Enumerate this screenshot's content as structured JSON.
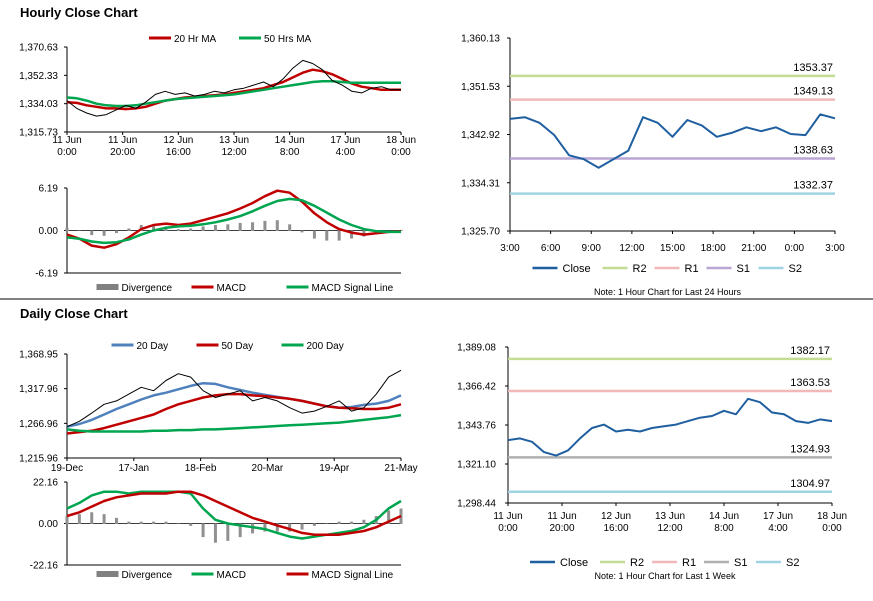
{
  "sections": {
    "hourly_title": "Hourly Close Chart",
    "daily_title": "Daily Close Chart"
  },
  "chart_data": [
    {
      "id": "hourly-price",
      "type": "line",
      "legend": [
        "20 Hr MA",
        "50 Hrs MA"
      ],
      "legend_colors": [
        "#c00000",
        "#00a550"
      ],
      "ylim": [
        1315.73,
        1370.63
      ],
      "yticks": [
        "1,370.63",
        "1,352.33",
        "1,334.03",
        "1,315.73"
      ],
      "xticks": [
        "11 Jun\n0:00",
        "11 Jun\n20:00",
        "12 Jun\n16:00",
        "13 Jun\n12:00",
        "14 Jun\n8:00",
        "17 Jun\n4:00",
        "18 Jun\n0:00"
      ],
      "series": [
        {
          "name": "20 Hr MA",
          "color": "#c00000",
          "values": [
            1335,
            1334.5,
            1333,
            1332,
            1331,
            1331,
            1330.5,
            1331,
            1332,
            1334,
            1336,
            1337,
            1338,
            1338.5,
            1339,
            1339.5,
            1340,
            1341,
            1342,
            1343,
            1344,
            1346,
            1348,
            1351,
            1354,
            1356,
            1355,
            1353,
            1350,
            1347,
            1345,
            1344,
            1343,
            1343,
            1343
          ]
        },
        {
          "name": "50 Hrs MA",
          "color": "#00a550",
          "values": [
            1338,
            1337.5,
            1336,
            1334,
            1333,
            1332.5,
            1332.5,
            1333,
            1334,
            1335,
            1336,
            1337,
            1337.5,
            1338,
            1338.5,
            1339,
            1339.5,
            1340,
            1341,
            1342,
            1343,
            1344,
            1345,
            1346,
            1347,
            1348,
            1348.5,
            1348.5,
            1348,
            1347.5,
            1347.5,
            1347.5,
            1347.5,
            1347.5,
            1347.5
          ]
        },
        {
          "name": "Price",
          "color": "#000000",
          "values": [
            1336,
            1331,
            1328,
            1326,
            1327,
            1330,
            1333,
            1331,
            1335,
            1340,
            1342,
            1340,
            1341,
            1339,
            1340,
            1342,
            1341,
            1343,
            1344,
            1346,
            1348,
            1345,
            1350,
            1357,
            1362,
            1360,
            1356,
            1349,
            1346,
            1342,
            1341,
            1344,
            1345,
            1343,
            1343
          ]
        }
      ]
    },
    {
      "id": "hourly-macd",
      "type": "bar",
      "legend": [
        "Divergence",
        "MACD",
        "MACD Signal Line"
      ],
      "legend_colors": [
        "#808080",
        "#c00000",
        "#00a550"
      ],
      "ylim": [
        -6.19,
        6.19
      ],
      "yticks": [
        "6.19",
        "0.00",
        "-6.19"
      ],
      "series": [
        {
          "name": "MACD",
          "color": "#c00000",
          "values": [
            -0.6,
            -1.2,
            -2.2,
            -2.5,
            -2.0,
            -1.0,
            0.2,
            0.8,
            1.0,
            0.8,
            1.0,
            1.5,
            2.0,
            2.5,
            3.2,
            4.0,
            5.0,
            5.8,
            5.5,
            4.2,
            2.5,
            1.2,
            0.2,
            -0.3,
            -0.6,
            -0.4,
            -0.2,
            -0.1
          ]
        },
        {
          "name": "MACD Signal Line",
          "color": "#00a550",
          "values": [
            -1.0,
            -1.2,
            -1.6,
            -1.8,
            -1.7,
            -1.3,
            -0.6,
            0.0,
            0.4,
            0.6,
            0.7,
            0.9,
            1.2,
            1.6,
            2.1,
            2.8,
            3.6,
            4.3,
            4.6,
            4.4,
            3.6,
            2.6,
            1.6,
            0.8,
            0.2,
            -0.1,
            -0.2,
            -0.2
          ]
        },
        {
          "name": "Divergence",
          "color": "#808080",
          "values": [
            0.4,
            0.0,
            -0.6,
            -0.7,
            -0.3,
            0.3,
            0.8,
            0.8,
            0.6,
            0.2,
            0.3,
            0.6,
            0.8,
            0.9,
            1.1,
            1.2,
            1.4,
            1.5,
            0.9,
            -0.2,
            -1.1,
            -1.4,
            -1.4,
            -1.1,
            -0.8,
            -0.3,
            0.0,
            0.1
          ]
        }
      ]
    },
    {
      "id": "hourly-pivot",
      "type": "line",
      "ylim": [
        1325.7,
        1360.13
      ],
      "yticks": [
        "1,360.13",
        "1,351.53",
        "1,342.92",
        "1,334.31",
        "1,325.70"
      ],
      "xticks": [
        "3:00",
        "6:00",
        "9:00",
        "12:00",
        "15:00",
        "18:00",
        "21:00",
        "0:00",
        "3:00"
      ],
      "series": [
        {
          "name": "Close",
          "color": "#1f5fa0",
          "values": [
            1345.7,
            1346.0,
            1345.0,
            1342.8,
            1339.2,
            1338.5,
            1337.0,
            1338.5,
            1340.0,
            1346.0,
            1345.0,
            1342.5,
            1345.5,
            1344.5,
            1342.5,
            1343.2,
            1344.2,
            1343.5,
            1344.2,
            1343.0,
            1342.8,
            1346.5,
            1345.8
          ]
        }
      ],
      "levels": [
        {
          "name": "R2",
          "value": 1353.37,
          "label": "1353.37",
          "color": "#c5dc95"
        },
        {
          "name": "R1",
          "value": 1349.13,
          "label": "1349.13",
          "color": "#f0b8b8"
        },
        {
          "name": "S1",
          "value": 1338.63,
          "label": "1338.63",
          "color": "#b9a6d4"
        },
        {
          "name": "S2",
          "value": 1332.37,
          "label": "1332.37",
          "color": "#9fd3e2"
        }
      ],
      "legend": [
        "Close",
        "R2",
        "R1",
        "S1",
        "S2"
      ],
      "note": "Note: 1 Hour Chart for Last 24 Hours"
    },
    {
      "id": "daily-price",
      "type": "line",
      "legend": [
        "20 Day",
        "50 Day",
        "200 Day"
      ],
      "legend_colors": [
        "#4f81bd",
        "#c00000",
        "#00a550"
      ],
      "ylim": [
        1215.96,
        1368.95
      ],
      "yticks": [
        "1,368.95",
        "1,317.96",
        "1,266.96",
        "1,215.96"
      ],
      "xticks": [
        "19-Dec",
        "17-Jan",
        "18-Feb",
        "20-Mar",
        "19-Apr",
        "21-May"
      ],
      "series": [
        {
          "name": "20 Day",
          "color": "#4f81bd",
          "values": [
            1262,
            1266,
            1272,
            1280,
            1288,
            1295,
            1302,
            1308,
            1312,
            1317,
            1322,
            1326,
            1325,
            1320,
            1316,
            1312,
            1309,
            1306,
            1303,
            1300,
            1296,
            1292,
            1290,
            1291,
            1294,
            1296,
            1300,
            1308
          ]
        },
        {
          "name": "50 Day",
          "color": "#c00000",
          "values": [
            1252,
            1254,
            1256,
            1260,
            1265,
            1270,
            1275,
            1280,
            1288,
            1295,
            1300,
            1305,
            1308,
            1310,
            1310,
            1308,
            1307,
            1305,
            1303,
            1300,
            1296,
            1292,
            1290,
            1289,
            1288,
            1288,
            1290,
            1295
          ]
        },
        {
          "name": "200 Day",
          "color": "#00a550",
          "values": [
            1258,
            1256,
            1255,
            1255,
            1255,
            1255,
            1255,
            1256,
            1256,
            1257,
            1257,
            1258,
            1258,
            1259,
            1260,
            1261,
            1262,
            1263,
            1264,
            1265,
            1266,
            1267,
            1268,
            1270,
            1272,
            1274,
            1276,
            1279
          ]
        },
        {
          "name": "Price",
          "color": "#000000",
          "values": [
            1262,
            1270,
            1282,
            1295,
            1300,
            1310,
            1320,
            1315,
            1330,
            1340,
            1335,
            1315,
            1305,
            1310,
            1315,
            1300,
            1305,
            1300,
            1290,
            1282,
            1285,
            1292,
            1300,
            1285,
            1290,
            1310,
            1335,
            1345
          ]
        }
      ]
    },
    {
      "id": "daily-macd",
      "type": "bar",
      "legend": [
        "Divergence",
        "MACD",
        "MACD Signal Line"
      ],
      "legend_colors": [
        "#808080",
        "#00a550",
        "#c00000"
      ],
      "ylim": [
        -22.16,
        22.16
      ],
      "yticks": [
        "22.16",
        "0.00",
        "-22.16"
      ],
      "series": [
        {
          "name": "MACD",
          "color": "#00a550",
          "values": [
            8,
            11,
            15,
            17,
            17,
            16,
            17,
            17,
            17,
            17,
            16,
            8,
            2,
            0,
            -1,
            -2,
            -3,
            -5,
            -7,
            -8,
            -7,
            -6,
            -5,
            -4,
            -2,
            2,
            8,
            12
          ]
        },
        {
          "name": "MACD Signal Line",
          "color": "#c00000",
          "values": [
            4,
            6,
            9,
            12,
            14,
            15,
            16,
            16,
            16,
            17,
            17,
            15,
            12,
            9,
            6,
            3,
            1,
            -1,
            -3,
            -5,
            -6,
            -6,
            -6,
            -5,
            -4,
            -2,
            1,
            4
          ]
        },
        {
          "name": "Divergence",
          "color": "#808080",
          "values": [
            4,
            5,
            6,
            5,
            3,
            1,
            1,
            1,
            1,
            0,
            -1,
            -7,
            -10,
            -9,
            -7,
            -5,
            -4,
            -4,
            -4,
            -3,
            -1,
            0,
            1,
            1,
            2,
            4,
            7,
            8
          ]
        }
      ]
    },
    {
      "id": "daily-pivot",
      "type": "line",
      "ylim": [
        1298.44,
        1389.08
      ],
      "yticks": [
        "1,389.08",
        "1,366.42",
        "1,343.76",
        "1,321.10",
        "1,298.44"
      ],
      "xticks": [
        "11 Jun\n0:00",
        "11 Jun\n20:00",
        "12 Jun\n16:00",
        "13 Jun\n12:00",
        "14 Jun\n8:00",
        "17 Jun\n4:00",
        "18 Jun\n0:00"
      ],
      "series": [
        {
          "name": "Close",
          "color": "#1f5fa0",
          "values": [
            1335,
            1336,
            1334,
            1328,
            1326,
            1329,
            1336,
            1342,
            1344,
            1340,
            1341,
            1340,
            1342,
            1343,
            1344,
            1346,
            1348,
            1349,
            1352,
            1350,
            1359,
            1357,
            1351,
            1350,
            1346,
            1345,
            1347,
            1346
          ]
        }
      ],
      "levels": [
        {
          "name": "R2",
          "value": 1382.17,
          "label": "1382.17",
          "color": "#c5dc95"
        },
        {
          "name": "R1",
          "value": 1363.53,
          "label": "1363.53",
          "color": "#f0b8b8"
        },
        {
          "name": "S1",
          "value": 1324.93,
          "label": "1324.93",
          "color": "#b0b0b0"
        },
        {
          "name": "S2",
          "value": 1304.97,
          "label": "1304.97",
          "color": "#9fd3e2"
        }
      ],
      "legend": [
        "Close",
        "R2",
        "R1",
        "S1",
        "S2"
      ],
      "note": "Note: 1 Hour Chart for Last 1 Week"
    }
  ]
}
